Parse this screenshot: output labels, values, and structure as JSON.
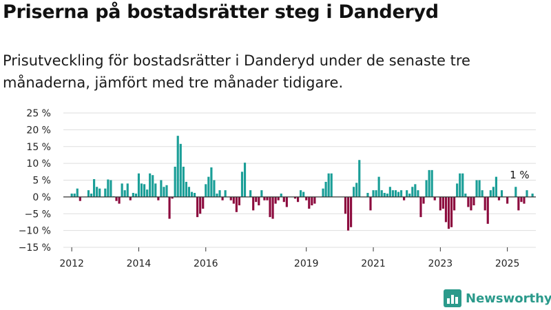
{
  "title": "Priserna på bostadsrätter steg i Danderyd",
  "subtitle": "Prisutveckling för bostadsrätter i Danderyd under de senaste tre månaderna, jämfört med tre månader tidigare.",
  "brand": "Newsworthy",
  "colors": {
    "positive": "#1a9e97",
    "negative": "#8c0b3e",
    "grid": "#dddddd",
    "brand": "#2b9a8b"
  },
  "chart_data": {
    "type": "bar",
    "ylim": [
      -15,
      25
    ],
    "ytick_labels": [
      "−15 %",
      "−10 %",
      "−5 %",
      "0 %",
      "5 %",
      "10 %",
      "15 %",
      "20 %",
      "25 %"
    ],
    "yticks": [
      -15,
      -10,
      -5,
      0,
      5,
      10,
      15,
      20,
      25
    ],
    "xlim": [
      2011.75,
      2025.85
    ],
    "xtick_labels": [
      "2012",
      "2014",
      "2016",
      "2019",
      "2021",
      "2023",
      "2025"
    ],
    "xticks": [
      2012,
      2014,
      2016,
      2019,
      2021,
      2023,
      2025
    ],
    "grid": true,
    "annotations": [
      {
        "text": "1 %",
        "x": 2025.2,
        "y": 1
      }
    ],
    "x_start": "2012-01",
    "values": [
      1,
      1,
      2.5,
      -1.2,
      0,
      0,
      2,
      1,
      5.3,
      3,
      2.5,
      0,
      2.5,
      5.2,
      5,
      0.2,
      -1.2,
      -2,
      4,
      2,
      4,
      -1,
      1.2,
      1,
      7,
      4,
      3.8,
      2.2,
      7,
      6.5,
      4,
      -1,
      5,
      3,
      3.5,
      -6.5,
      -0.5,
      9,
      18.2,
      15.8,
      9,
      4.5,
      3,
      1.5,
      1.2,
      -6,
      -5,
      -3.5,
      3.8,
      6,
      8.8,
      5,
      1,
      2,
      -1,
      2,
      0,
      -1,
      -2,
      -4.5,
      -2.5,
      7.5,
      10.2,
      0,
      2,
      -4,
      -1.5,
      -2.5,
      2,
      -1,
      -1,
      -6,
      -6.5,
      -2,
      -1,
      1,
      -1.5,
      -3,
      0,
      0,
      -0.5,
      -1.5,
      2,
      1.5,
      -1,
      -3.5,
      -2.5,
      -2,
      0,
      0,
      2.5,
      4.5,
      7,
      7,
      0,
      0,
      0,
      0,
      -5,
      -10,
      -9,
      3,
      4.2,
      11,
      0,
      0,
      1.2,
      -4,
      2,
      2,
      6,
      2,
      1.2,
      1,
      3,
      2,
      2,
      1.5,
      2,
      -1,
      2,
      1,
      3,
      3.8,
      2,
      -6,
      -2,
      5,
      8,
      8,
      -1,
      0,
      -4,
      -3.5,
      -7.5,
      -9.5,
      -9,
      -4,
      4,
      7,
      7,
      1,
      -3,
      -4,
      -2.5,
      5,
      5,
      2,
      -4,
      -8,
      2,
      3,
      6,
      -1,
      2,
      0,
      -2,
      0,
      0,
      3,
      -4,
      -1.5,
      -2,
      2,
      0,
      1
    ]
  }
}
